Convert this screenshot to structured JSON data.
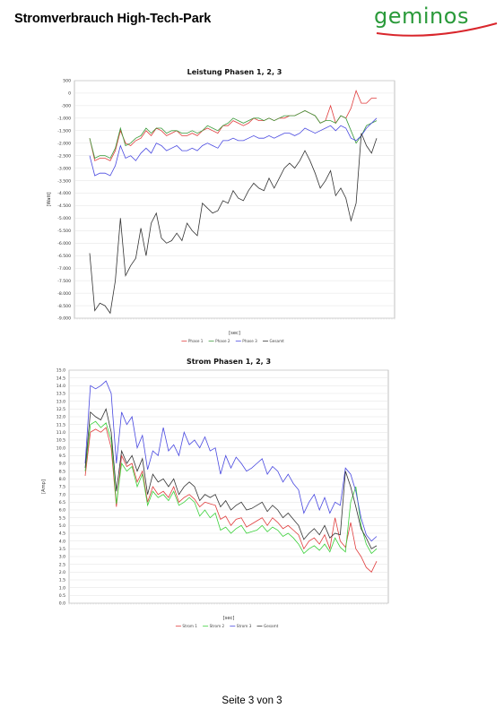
{
  "header": {
    "title": "Stromverbrauch High-Tech-Park",
    "logo_text": "geminos",
    "logo_colors": {
      "text": "#2a9a3a",
      "swoosh": "#d9262c"
    }
  },
  "footer": {
    "page_label": "Seite 3 von 3"
  },
  "chart_data": [
    {
      "type": "line",
      "title": "Leistung Phasen 1, 2, 3",
      "xlabel": "[sec]",
      "ylabel": "[Watt]",
      "ylim": [
        -9000,
        500
      ],
      "yticks": [
        500,
        0,
        -500,
        -1000,
        -1500,
        -2000,
        -2500,
        -3000,
        -3500,
        -4000,
        -4500,
        -5000,
        -5500,
        -6000,
        -6500,
        -7000,
        -7500,
        -8000,
        -8500,
        -9000
      ],
      "ytick_labels": [
        "500",
        "0",
        "-500",
        "-1.000",
        "-1.500",
        "-2.000",
        "-2.500",
        "-3.000",
        "-3.500",
        "-4.000",
        "-4.500",
        "-5.000",
        "-5.500",
        "-6.000",
        "-6.500",
        "-7.000",
        "-7.500",
        "-8.000",
        "-8.500",
        "-9.000"
      ],
      "grid": true,
      "legend_position": "bottom",
      "series": [
        {
          "name": "Phase 1",
          "color": "#e03c3c",
          "values": [
            -1800,
            -2700,
            -2600,
            -2600,
            -2700,
            -2300,
            -1500,
            -2000,
            -2100,
            -1900,
            -1800,
            -1500,
            -1700,
            -1400,
            -1500,
            -1700,
            -1600,
            -1500,
            -1700,
            -1700,
            -1600,
            -1700,
            -1500,
            -1400,
            -1500,
            -1600,
            -1300,
            -1300,
            -1100,
            -1200,
            -1300,
            -1200,
            -1000,
            -1100,
            -1100,
            -1000,
            -1100,
            -1000,
            -1000,
            -900,
            -900,
            -800,
            -700,
            -800,
            -900,
            -1200,
            -1100,
            -500,
            -1200,
            -900,
            -1000,
            -600,
            100,
            -400,
            -400,
            -200,
            -200
          ]
        },
        {
          "name": "Phase 2",
          "color": "#3a9a3a",
          "values": [
            -1800,
            -2600,
            -2500,
            -2500,
            -2600,
            -2200,
            -1400,
            -2100,
            -2000,
            -1800,
            -1700,
            -1400,
            -1600,
            -1400,
            -1400,
            -1600,
            -1500,
            -1500,
            -1600,
            -1600,
            -1500,
            -1600,
            -1500,
            -1300,
            -1400,
            -1500,
            -1300,
            -1200,
            -1000,
            -1100,
            -1200,
            -1100,
            -1000,
            -1000,
            -1100,
            -1000,
            -1100,
            -1000,
            -900,
            -900,
            -900,
            -800,
            -700,
            -800,
            -900,
            -1200,
            -1100,
            -1100,
            -1200,
            -900,
            -1000,
            -1500,
            -2000,
            -1700,
            -1300,
            -1200,
            -1100
          ]
        },
        {
          "name": "Phase 3",
          "color": "#4848e0",
          "values": [
            -2500,
            -3300,
            -3200,
            -3200,
            -3300,
            -2900,
            -2100,
            -2600,
            -2500,
            -2700,
            -2400,
            -2200,
            -2400,
            -2000,
            -2100,
            -2300,
            -2200,
            -2100,
            -2300,
            -2300,
            -2200,
            -2300,
            -2100,
            -2000,
            -2100,
            -2200,
            -1900,
            -1900,
            -1800,
            -1900,
            -1900,
            -1800,
            -1700,
            -1800,
            -1800,
            -1700,
            -1800,
            -1700,
            -1600,
            -1600,
            -1700,
            -1600,
            -1400,
            -1500,
            -1600,
            -1500,
            -1400,
            -1300,
            -1500,
            -1300,
            -1400,
            -1800,
            -1900,
            -1700,
            -1400,
            -1200,
            -1000
          ]
        },
        {
          "name": "Gesamt",
          "color": "#333333",
          "values": [
            -6400,
            -8700,
            -8400,
            -8500,
            -8800,
            -7500,
            -5000,
            -7300,
            -6900,
            -6600,
            -5400,
            -6500,
            -5200,
            -4800,
            -5800,
            -6000,
            -5900,
            -5600,
            -5900,
            -5200,
            -5500,
            -5700,
            -4400,
            -4600,
            -4800,
            -4700,
            -4300,
            -4400,
            -3900,
            -4200,
            -4300,
            -3900,
            -3600,
            -3800,
            -3900,
            -3400,
            -3800,
            -3400,
            -3000,
            -2800,
            -3000,
            -2700,
            -2300,
            -2700,
            -3200,
            -3800,
            -3500,
            -3100,
            -4100,
            -3800,
            -4200,
            -5100,
            -4400,
            -1600,
            -2100,
            -2400,
            -1800
          ]
        }
      ]
    },
    {
      "type": "line",
      "title": "Strom Phasen 1, 2, 3",
      "xlabel": "[sec]",
      "ylabel": "[Amp]",
      "ylim": [
        0,
        15
      ],
      "yticks": [
        15,
        14.5,
        14,
        13.5,
        13,
        12.5,
        12,
        11.5,
        11,
        10.5,
        10,
        9.5,
        9,
        8.5,
        8,
        7.5,
        7,
        6.5,
        6,
        5.5,
        5,
        4.5,
        4,
        3.5,
        3,
        2.5,
        2,
        1.5,
        1,
        0.5,
        0
      ],
      "ytick_labels": [
        "15.0",
        "14.5",
        "14.0",
        "13.5",
        "13.0",
        "12.5",
        "12.0",
        "11.5",
        "11.0",
        "10.5",
        "10.0",
        "9.5",
        "9.0",
        "8.5",
        "8.0",
        "7.5",
        "7.0",
        "6.5",
        "6.0",
        "5.5",
        "5.0",
        "4.5",
        "4.0",
        "3.5",
        "3.0",
        "2.5",
        "2.0",
        "1.5",
        "1.0",
        "0.5",
        "0.0"
      ],
      "grid": true,
      "legend_position": "bottom",
      "series": [
        {
          "name": "Strom 1",
          "color": "#e03c3c",
          "values": [
            8.2,
            11.0,
            11.2,
            11.0,
            11.3,
            10.0,
            6.2,
            9.5,
            8.8,
            9.0,
            7.8,
            8.5,
            6.5,
            7.5,
            7.0,
            7.2,
            6.8,
            7.5,
            6.5,
            6.8,
            7.0,
            6.7,
            6.2,
            6.5,
            6.4,
            6.3,
            5.4,
            5.6,
            5.0,
            5.4,
            5.5,
            4.9,
            5.1,
            5.3,
            5.5,
            5.0,
            5.5,
            5.2,
            4.8,
            5.0,
            4.7,
            4.4,
            3.5,
            4.0,
            4.2,
            3.8,
            4.4,
            3.5,
            5.5,
            4.0,
            3.6,
            5.2,
            3.5,
            3.0,
            2.3,
            2.0,
            2.7
          ]
        },
        {
          "name": "Strom 2",
          "color": "#3ad03a",
          "values": [
            8.5,
            11.5,
            11.7,
            11.3,
            11.6,
            10.5,
            6.4,
            9.0,
            8.5,
            8.8,
            7.5,
            8.3,
            6.3,
            7.2,
            6.8,
            7.0,
            6.6,
            7.2,
            6.3,
            6.5,
            6.8,
            6.5,
            5.6,
            6.0,
            5.5,
            5.8,
            4.7,
            4.9,
            4.5,
            4.8,
            5.0,
            4.5,
            4.6,
            4.7,
            5.0,
            4.6,
            4.9,
            4.7,
            4.3,
            4.5,
            4.2,
            3.8,
            3.2,
            3.5,
            3.7,
            3.4,
            3.8,
            3.3,
            4.2,
            3.6,
            3.3,
            6.5,
            7.5,
            5.0,
            3.8,
            3.2,
            3.5
          ]
        },
        {
          "name": "Strom 3",
          "color": "#4848e0",
          "values": [
            9.0,
            14.0,
            13.8,
            14.0,
            14.3,
            13.5,
            9.0,
            12.3,
            11.5,
            12.0,
            10.0,
            10.8,
            8.6,
            9.8,
            9.5,
            11.3,
            9.8,
            10.2,
            9.5,
            11.0,
            10.2,
            10.5,
            10.0,
            10.7,
            9.8,
            10.0,
            8.3,
            9.5,
            8.7,
            9.4,
            9.0,
            8.5,
            8.7,
            9.0,
            9.3,
            8.3,
            8.8,
            8.5,
            7.8,
            8.3,
            7.7,
            7.3,
            5.8,
            6.5,
            7.0,
            6.0,
            6.8,
            5.8,
            6.5,
            6.3,
            8.7,
            8.3,
            7.2,
            5.5,
            4.4,
            4.0,
            4.3
          ]
        },
        {
          "name": "Gesamt",
          "color": "#333333",
          "values": [
            8.7,
            12.3,
            12.0,
            11.8,
            12.5,
            11.0,
            7.2,
            9.8,
            9.0,
            9.5,
            8.5,
            9.3,
            7.0,
            8.3,
            7.8,
            8.0,
            7.5,
            8.0,
            7.0,
            7.5,
            7.8,
            7.5,
            6.6,
            7.0,
            6.8,
            7.0,
            6.2,
            6.6,
            6.0,
            6.3,
            6.5,
            6.0,
            6.1,
            6.3,
            6.5,
            5.9,
            6.3,
            6.0,
            5.5,
            5.8,
            5.4,
            5.0,
            4.1,
            4.5,
            4.8,
            4.4,
            5.0,
            4.2,
            4.5,
            4.4,
            8.5,
            7.5,
            6.2,
            4.8,
            4.2,
            3.5,
            3.7
          ]
        }
      ]
    }
  ]
}
